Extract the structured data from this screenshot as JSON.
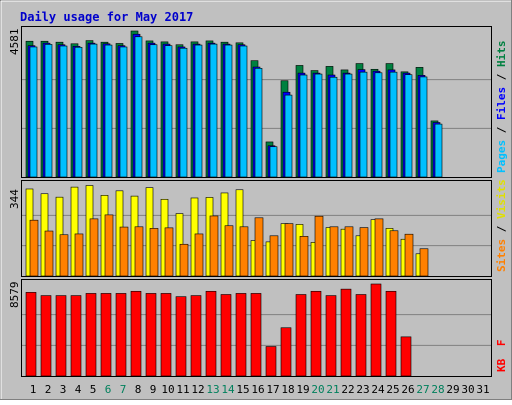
{
  "colors": {
    "background": "#ffffff",
    "panel": "#c0c0c0",
    "title": "#0000cc",
    "hits": "#008040",
    "files": "#0000ff",
    "pages": "#00c0ff",
    "visits": "#ffff00",
    "sites": "#ff8000",
    "kbytes": "#ff0000",
    "weekend_label": "#00805c",
    "weekday_label": "#000000"
  },
  "chart_data": {
    "type": "bar",
    "title": "Daily usage for May 2017",
    "days": [
      "1",
      "2",
      "3",
      "4",
      "5",
      "6",
      "7",
      "8",
      "9",
      "10",
      "11",
      "12",
      "13",
      "14",
      "15",
      "16",
      "17",
      "18",
      "19",
      "20",
      "21",
      "22",
      "23",
      "24",
      "25",
      "26",
      "27",
      "28",
      "29",
      "30",
      "31"
    ],
    "weekend_days": [
      "6",
      "7",
      "13",
      "14",
      "20",
      "21",
      "27",
      "28"
    ],
    "panels": [
      {
        "id": "hits-files-pages",
        "axis_max_label": "4581",
        "ymax": 4581,
        "series": [
          {
            "name": "Hits",
            "color_key": "hits",
            "values": [
              4260,
              4260,
              4230,
              4180,
              4280,
              4230,
              4190,
              4581,
              4270,
              4240,
              4150,
              4240,
              4270,
              4230,
              4210,
              3650,
              1100,
              3020,
              3500,
              3340,
              3470,
              3360,
              3560,
              3380,
              3560,
              3300,
              3440,
              1760,
              null,
              null,
              null
            ]
          },
          {
            "name": "Files",
            "color_key": "files",
            "values": [
              4120,
              4200,
              4150,
              4100,
              4200,
              4180,
              4120,
              4480,
              4200,
              4170,
              4080,
              4170,
              4200,
              4170,
              4150,
              3450,
              980,
              2660,
              3260,
              3260,
              3200,
              3260,
              3370,
              3320,
              3360,
              3260,
              3190,
              1710,
              null,
              null,
              null
            ]
          },
          {
            "name": "Pages",
            "color_key": "pages",
            "values": [
              4080,
              4160,
              4110,
              4070,
              4170,
              4140,
              4080,
              4400,
              4150,
              4120,
              4040,
              4140,
              4170,
              4140,
              4110,
              3410,
              950,
              2570,
              3200,
              3230,
              3130,
              3230,
              3290,
              3270,
              3290,
              3210,
              3140,
              1660,
              null,
              null,
              null
            ]
          }
        ],
        "legend": [
          "Pages",
          "Files",
          "Hits"
        ]
      },
      {
        "id": "visits-sites",
        "axis_max_label": "344",
        "ymax": 344,
        "series": [
          {
            "name": "Visits",
            "color_key": "visits",
            "values": [
              329,
              311,
              298,
              336,
              342,
              305,
              322,
              302,
              334,
              290,
              236,
              295,
              297,
              314,
              326,
              134,
              129,
              198,
              195,
              127,
              183,
              177,
              152,
              213,
              180,
              139,
              84,
              null,
              null,
              null,
              null
            ]
          },
          {
            "name": "Sites",
            "color_key": "sites",
            "values": [
              211,
              170,
              156,
              159,
              216,
              231,
              185,
              186,
              180,
              182,
              120,
              159,
              227,
              190,
              186,
              220,
              152,
              198,
              150,
              226,
              186,
              186,
              183,
              216,
              171,
              158,
              103,
              null,
              null,
              null,
              null
            ]
          }
        ],
        "legend": [
          "Sites",
          "Visits"
        ]
      },
      {
        "id": "kbytes",
        "axis_max_label": "8579",
        "ymax": 8579,
        "series": [
          {
            "name": "KBytes",
            "color_key": "kbytes",
            "values": [
              7800,
              7500,
              7500,
              7500,
              7700,
              7700,
              7700,
              7900,
              7700,
              7700,
              7400,
              7500,
              7900,
              7600,
              7700,
              7700,
              2750,
              4500,
              7600,
              7900,
              7500,
              8100,
              7600,
              8579,
              7900,
              3650,
              null,
              null,
              null,
              null,
              null
            ]
          }
        ],
        "legend": [
          "KBytes"
        ]
      }
    ]
  },
  "legends_text": {
    "panel1": [
      "Pages",
      "/",
      "Files",
      "/",
      "Hits"
    ],
    "panel2": [
      "Sites",
      "/",
      "Visits"
    ],
    "panel3": [
      "KB",
      "F"
    ]
  }
}
